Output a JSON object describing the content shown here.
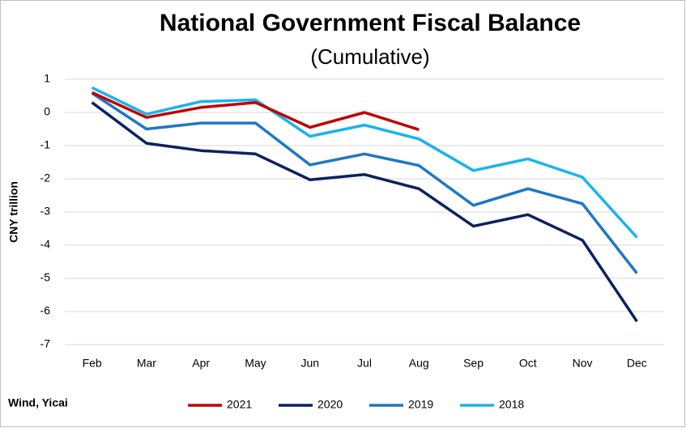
{
  "chart_data": {
    "type": "line",
    "title": "National Government Fiscal Balance",
    "subtitle": "(Cumulative)",
    "y_label": "CNY trillion",
    "source": "Wind, Yicai",
    "categories": [
      "Feb",
      "Mar",
      "Apr",
      "May",
      "Jun",
      "Jul",
      "Aug",
      "Sep",
      "Oct",
      "Nov",
      "Dec"
    ],
    "series": [
      {
        "name": "2021",
        "color": "#c00000",
        "values": [
          0.6,
          -0.15,
          0.15,
          0.3,
          -0.45,
          0,
          -0.52,
          null,
          null,
          null,
          null
        ]
      },
      {
        "name": "2020",
        "color": "#0b2260",
        "values": [
          0.3,
          -0.93,
          -1.15,
          -1.25,
          -2.03,
          -1.87,
          -2.3,
          -3.43,
          -3.08,
          -3.85,
          -6.3
        ]
      },
      {
        "name": "2019",
        "color": "#1f77c4",
        "values": [
          0.58,
          -0.5,
          -0.32,
          -0.32,
          -1.58,
          -1.25,
          -1.6,
          -2.8,
          -2.3,
          -2.75,
          -4.85
        ]
      },
      {
        "name": "2018",
        "color": "#1ab4ec",
        "values": [
          0.75,
          -0.05,
          0.33,
          0.38,
          -0.72,
          -0.38,
          -0.8,
          -1.75,
          -1.4,
          -1.95,
          -3.77
        ]
      }
    ],
    "ylim": [
      -7,
      1
    ],
    "yticks": [
      -7,
      -6,
      -5,
      -4,
      -3,
      -2,
      -1,
      0,
      1
    ],
    "grid": true,
    "legend": "bottom"
  }
}
